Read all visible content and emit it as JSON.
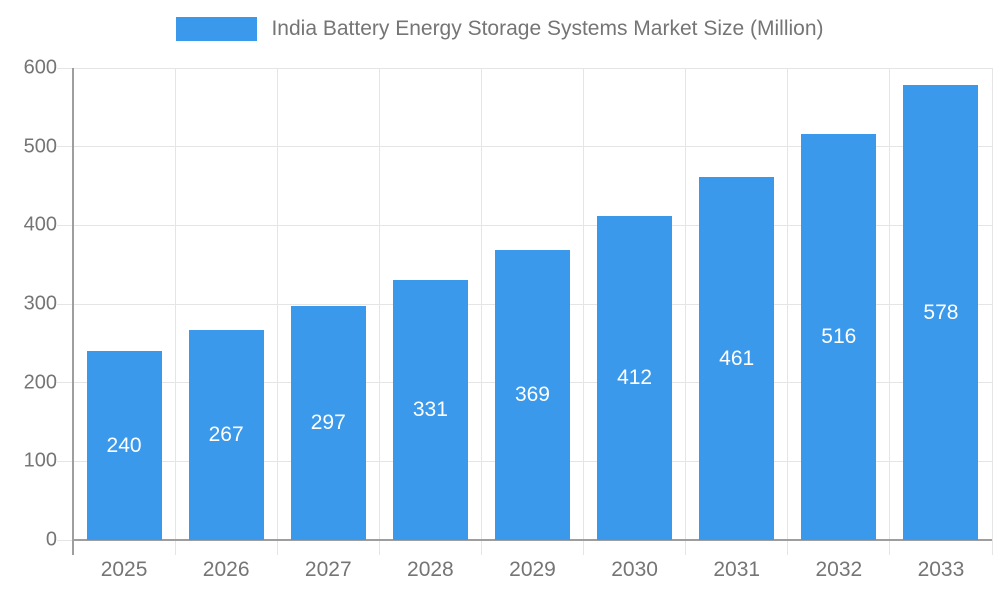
{
  "legend": {
    "label": "India Battery Energy Storage Systems Market Size (Million)"
  },
  "colors": {
    "bar": "#3b99ec",
    "axis": "#9e9e9e",
    "grid": "#e5e5e5",
    "tick_text": "#757575",
    "value_text": "#ffffff",
    "background": "#ffffff"
  },
  "chart_data": {
    "type": "bar",
    "title": "India Battery Energy Storage Systems Market Size (Million)",
    "categories": [
      "2025",
      "2026",
      "2027",
      "2028",
      "2029",
      "2030",
      "2031",
      "2032",
      "2033"
    ],
    "values": [
      240,
      267,
      297,
      331,
      369,
      412,
      461,
      516,
      578
    ],
    "xlabel": "",
    "ylabel": "",
    "ylim": [
      0,
      600
    ],
    "yticks": [
      0,
      100,
      200,
      300,
      400,
      500,
      600
    ],
    "grid": true,
    "legend_position": "top",
    "value_labels": "inside-center"
  }
}
